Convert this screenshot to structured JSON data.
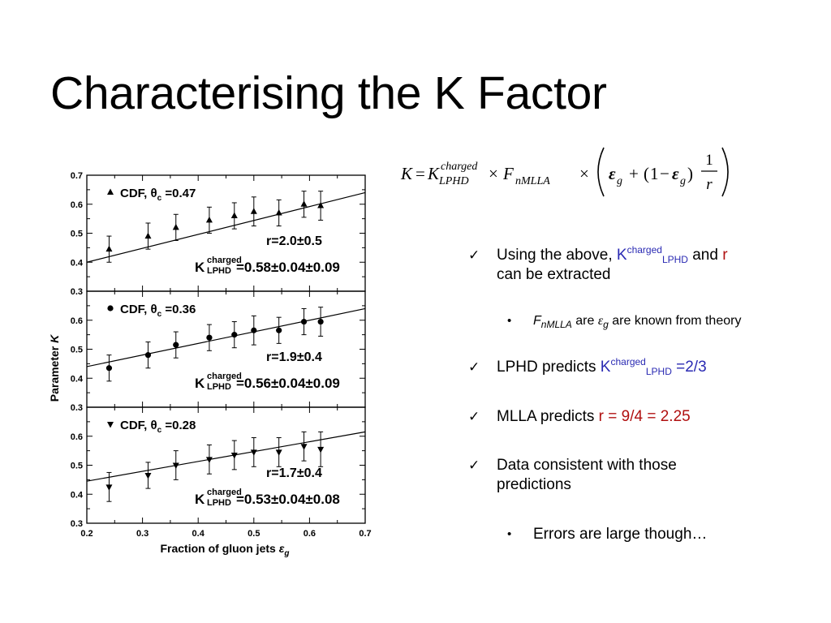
{
  "slide": {
    "title": "Characterising the K Factor"
  },
  "formula": {
    "lhs": "K",
    "k_symbol": "K",
    "k_sup": "charged",
    "k_sub": "LPHD",
    "f_symbol": "F",
    "f_sub": "nMLLA",
    "eps_symbol": "ε",
    "eps_sub": "g",
    "one": "1",
    "r": "r"
  },
  "bullets": {
    "b1": {
      "check": "✓",
      "prefix": "Using the above, ",
      "k": "K",
      "k_sup": "charged",
      "k_sub": "LPHD",
      "and": " and ",
      "r": "r",
      "suffix": "can be extracted"
    },
    "s1": {
      "dot": "•",
      "f": "F",
      "f_sub": "nMLLA",
      "are": " are ",
      "eps": "ε",
      "eps_sub": "g",
      "suffix": " are known from theory"
    },
    "b2": {
      "check": "✓",
      "prefix": "LPHD predicts ",
      "k": "K",
      "k_sup": "charged",
      "k_sub": "LPHD",
      "value": " =2/3"
    },
    "b3": {
      "check": "✓",
      "prefix": "MLLA predicts ",
      "value": "r = 9/4 = 2.25"
    },
    "b4": {
      "check": "✓",
      "line1": "Data consistent with those",
      "line2": "predictions"
    },
    "s2": {
      "dot": "•",
      "text": "Errors are large though…"
    }
  },
  "chart_data": {
    "type": "scatter",
    "xlabel_text": "Fraction of gluon jets ",
    "xlabel_symbol": "ε",
    "xlabel_sub": "g",
    "ylabel_text": "Parameter ",
    "ylabel_symbol": "K",
    "x_ticks": [
      "0.2",
      "0.3",
      "0.4",
      "0.5",
      "0.6",
      "0.7"
    ],
    "y_ticks": [
      "0.3",
      "0.4",
      "0.5",
      "0.6",
      "0.7"
    ],
    "xlim": [
      0.2,
      0.7
    ],
    "ylim": [
      0.3,
      0.7
    ],
    "x": [
      0.24,
      0.31,
      0.36,
      0.42,
      0.465,
      0.5,
      0.545,
      0.59,
      0.62
    ],
    "panels": [
      {
        "marker": "triangle-up",
        "legend_prefix": "CDF, θ",
        "legend_sub": "c",
        "legend_suffix": " =0.47",
        "y": [
          0.445,
          0.49,
          0.52,
          0.545,
          0.56,
          0.575,
          0.57,
          0.6,
          0.595
        ],
        "err": [
          0.045,
          0.045,
          0.045,
          0.045,
          0.045,
          0.05,
          0.045,
          0.045,
          0.05
        ],
        "fit": [
          0.4,
          0.64
        ],
        "r_text": "r=2.0±0.5",
        "k_main": "K",
        "k_sup": "charged",
        "k_sub": "LPHD",
        "k_value": "=0.58±0.04±0.09"
      },
      {
        "marker": "circle",
        "legend_prefix": "CDF, θ",
        "legend_sub": "c",
        "legend_suffix": " =0.36",
        "y": [
          0.435,
          0.48,
          0.515,
          0.54,
          0.55,
          0.565,
          0.565,
          0.595,
          0.595
        ],
        "err": [
          0.045,
          0.045,
          0.045,
          0.045,
          0.045,
          0.05,
          0.045,
          0.045,
          0.05
        ],
        "fit": [
          0.44,
          0.64
        ],
        "r_text": "r=1.9±0.4",
        "k_main": "K",
        "k_sup": "charged",
        "k_sub": "LPHD",
        "k_value": "=0.56±0.04±0.09"
      },
      {
        "marker": "triangle-down",
        "legend_prefix": "CDF, θ",
        "legend_sub": "c",
        "legend_suffix": " =0.28",
        "y": [
          0.425,
          0.465,
          0.5,
          0.52,
          0.535,
          0.545,
          0.545,
          0.565,
          0.555
        ],
        "err": [
          0.05,
          0.045,
          0.05,
          0.05,
          0.05,
          0.05,
          0.05,
          0.05,
          0.06
        ],
        "fit": [
          0.445,
          0.615
        ],
        "r_text": "r=1.7±0.4",
        "k_main": "K",
        "k_sup": "charged",
        "k_sub": "LPHD",
        "k_value": "=0.53±0.04±0.08"
      }
    ],
    "grid": false
  }
}
